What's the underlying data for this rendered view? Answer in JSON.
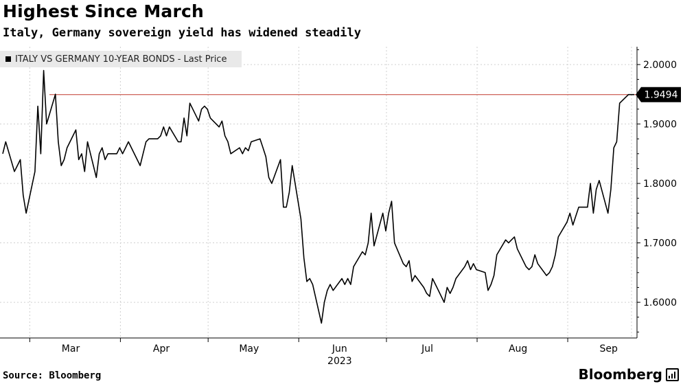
{
  "header": {
    "title": "Highest Since March",
    "subtitle": "Italy, Germany sovereign yield has widened steadily"
  },
  "legend": {
    "label": "ITALY VS GERMANY 10-YEAR BONDS - Last Price"
  },
  "footer": {
    "source": "Source: Bloomberg",
    "brand": "Bloomberg"
  },
  "chart_data": {
    "type": "line",
    "title": "Highest Since March",
    "subtitle": "Italy, Germany sovereign yield has widened steadily",
    "xlabel": "2023",
    "ylabel": "",
    "x_tick_labels": [
      "Mar",
      "Apr",
      "May",
      "Jun",
      "Jul",
      "Aug",
      "Sep"
    ],
    "year_label": "2023",
    "y_tick_labels": [
      "1.6000",
      "1.7000",
      "1.8000",
      "1.9000",
      "2.0000"
    ],
    "ylim": [
      1.54,
      2.03
    ],
    "y_axis_side": "right",
    "grid": true,
    "legend_position": "top-left",
    "last_value_label": "1.9494",
    "reference_line": {
      "value": 1.9494,
      "color": "#c0392b"
    },
    "series": [
      {
        "name": "ITALY VS GERMANY 10-YEAR BONDS - Last Price",
        "color": "#000000",
        "points": [
          [
            "2023-02-16",
            1.85
          ],
          [
            "2023-02-17",
            1.87
          ],
          [
            "2023-02-20",
            1.82
          ],
          [
            "2023-02-21",
            1.83
          ],
          [
            "2023-02-22",
            1.84
          ],
          [
            "2023-02-23",
            1.78
          ],
          [
            "2023-02-24",
            1.75
          ],
          [
            "2023-02-27",
            1.82
          ],
          [
            "2023-02-28",
            1.93
          ],
          [
            "2023-03-01",
            1.85
          ],
          [
            "2023-03-02",
            1.99
          ],
          [
            "2023-03-03",
            1.9
          ],
          [
            "2023-03-06",
            1.95
          ],
          [
            "2023-03-07",
            1.87
          ],
          [
            "2023-03-08",
            1.83
          ],
          [
            "2023-03-09",
            1.84
          ],
          [
            "2023-03-10",
            1.86
          ],
          [
            "2023-03-13",
            1.89
          ],
          [
            "2023-03-14",
            1.84
          ],
          [
            "2023-03-15",
            1.85
          ],
          [
            "2023-03-16",
            1.82
          ],
          [
            "2023-03-17",
            1.87
          ],
          [
            "2023-03-20",
            1.81
          ],
          [
            "2023-03-21",
            1.85
          ],
          [
            "2023-03-22",
            1.86
          ],
          [
            "2023-03-23",
            1.84
          ],
          [
            "2023-03-24",
            1.85
          ],
          [
            "2023-03-27",
            1.85
          ],
          [
            "2023-03-28",
            1.86
          ],
          [
            "2023-03-29",
            1.85
          ],
          [
            "2023-03-30",
            1.86
          ],
          [
            "2023-03-31",
            1.87
          ],
          [
            "2023-04-03",
            1.84
          ],
          [
            "2023-04-04",
            1.83
          ],
          [
            "2023-04-05",
            1.85
          ],
          [
            "2023-04-06",
            1.87
          ],
          [
            "2023-04-07",
            1.875
          ],
          [
            "2023-04-10",
            1.875
          ],
          [
            "2023-04-11",
            1.88
          ],
          [
            "2023-04-12",
            1.895
          ],
          [
            "2023-04-13",
            1.88
          ],
          [
            "2023-04-14",
            1.895
          ],
          [
            "2023-04-17",
            1.87
          ],
          [
            "2023-04-18",
            1.87
          ],
          [
            "2023-04-19",
            1.91
          ],
          [
            "2023-04-20",
            1.88
          ],
          [
            "2023-04-21",
            1.935
          ],
          [
            "2023-04-24",
            1.905
          ],
          [
            "2023-04-25",
            1.925
          ],
          [
            "2023-04-26",
            1.93
          ],
          [
            "2023-04-27",
            1.925
          ],
          [
            "2023-04-28",
            1.91
          ],
          [
            "2023-05-01",
            1.895
          ],
          [
            "2023-05-02",
            1.905
          ],
          [
            "2023-05-03",
            1.88
          ],
          [
            "2023-05-04",
            1.87
          ],
          [
            "2023-05-05",
            1.85
          ],
          [
            "2023-05-08",
            1.86
          ],
          [
            "2023-05-09",
            1.85
          ],
          [
            "2023-05-10",
            1.86
          ],
          [
            "2023-05-11",
            1.855
          ],
          [
            "2023-05-12",
            1.87
          ],
          [
            "2023-05-15",
            1.875
          ],
          [
            "2023-05-16",
            1.86
          ],
          [
            "2023-05-17",
            1.845
          ],
          [
            "2023-05-18",
            1.81
          ],
          [
            "2023-05-19",
            1.8
          ],
          [
            "2023-05-22",
            1.84
          ],
          [
            "2023-05-23",
            1.76
          ],
          [
            "2023-05-24",
            1.76
          ],
          [
            "2023-05-25",
            1.785
          ],
          [
            "2023-05-26",
            1.83
          ],
          [
            "2023-05-29",
            1.74
          ],
          [
            "2023-05-30",
            1.675
          ],
          [
            "2023-05-31",
            1.635
          ],
          [
            "2023-06-01",
            1.64
          ],
          [
            "2023-06-02",
            1.63
          ],
          [
            "2023-06-05",
            1.565
          ],
          [
            "2023-06-06",
            1.6
          ],
          [
            "2023-06-07",
            1.62
          ],
          [
            "2023-06-08",
            1.63
          ],
          [
            "2023-06-09",
            1.62
          ],
          [
            "2023-06-12",
            1.64
          ],
          [
            "2023-06-13",
            1.63
          ],
          [
            "2023-06-14",
            1.64
          ],
          [
            "2023-06-15",
            1.63
          ],
          [
            "2023-06-16",
            1.66
          ],
          [
            "2023-06-19",
            1.685
          ],
          [
            "2023-06-20",
            1.68
          ],
          [
            "2023-06-21",
            1.7
          ],
          [
            "2023-06-22",
            1.75
          ],
          [
            "2023-06-23",
            1.695
          ],
          [
            "2023-06-26",
            1.75
          ],
          [
            "2023-06-27",
            1.72
          ],
          [
            "2023-06-28",
            1.75
          ],
          [
            "2023-06-29",
            1.77
          ],
          [
            "2023-06-30",
            1.7
          ],
          [
            "2023-07-03",
            1.665
          ],
          [
            "2023-07-04",
            1.66
          ],
          [
            "2023-07-05",
            1.67
          ],
          [
            "2023-07-06",
            1.635
          ],
          [
            "2023-07-07",
            1.645
          ],
          [
            "2023-07-10",
            1.625
          ],
          [
            "2023-07-11",
            1.615
          ],
          [
            "2023-07-12",
            1.61
          ],
          [
            "2023-07-13",
            1.64
          ],
          [
            "2023-07-14",
            1.63
          ],
          [
            "2023-07-17",
            1.6
          ],
          [
            "2023-07-18",
            1.625
          ],
          [
            "2023-07-19",
            1.615
          ],
          [
            "2023-07-20",
            1.625
          ],
          [
            "2023-07-21",
            1.64
          ],
          [
            "2023-07-24",
            1.66
          ],
          [
            "2023-07-25",
            1.67
          ],
          [
            "2023-07-26",
            1.655
          ],
          [
            "2023-07-27",
            1.665
          ],
          [
            "2023-07-28",
            1.655
          ],
          [
            "2023-07-31",
            1.65
          ],
          [
            "2023-08-01",
            1.62
          ],
          [
            "2023-08-02",
            1.63
          ],
          [
            "2023-08-03",
            1.645
          ],
          [
            "2023-08-04",
            1.68
          ],
          [
            "2023-08-07",
            1.705
          ],
          [
            "2023-08-08",
            1.7
          ],
          [
            "2023-08-09",
            1.705
          ],
          [
            "2023-08-10",
            1.71
          ],
          [
            "2023-08-11",
            1.69
          ],
          [
            "2023-08-14",
            1.66
          ],
          [
            "2023-08-15",
            1.655
          ],
          [
            "2023-08-16",
            1.66
          ],
          [
            "2023-08-17",
            1.68
          ],
          [
            "2023-08-18",
            1.665
          ],
          [
            "2023-08-21",
            1.645
          ],
          [
            "2023-08-22",
            1.65
          ],
          [
            "2023-08-23",
            1.66
          ],
          [
            "2023-08-24",
            1.68
          ],
          [
            "2023-08-25",
            1.71
          ],
          [
            "2023-08-28",
            1.735
          ],
          [
            "2023-08-29",
            1.75
          ],
          [
            "2023-08-30",
            1.73
          ],
          [
            "2023-08-31",
            1.745
          ],
          [
            "2023-09-01",
            1.76
          ],
          [
            "2023-09-04",
            1.76
          ],
          [
            "2023-09-05",
            1.8
          ],
          [
            "2023-09-06",
            1.75
          ],
          [
            "2023-09-07",
            1.79
          ],
          [
            "2023-09-08",
            1.805
          ],
          [
            "2023-09-11",
            1.75
          ],
          [
            "2023-09-12",
            1.79
          ],
          [
            "2023-09-13",
            1.86
          ],
          [
            "2023-09-14",
            1.87
          ],
          [
            "2023-09-15",
            1.935
          ],
          [
            "2023-09-18",
            1.9494
          ],
          [
            "2023-09-19",
            1.9494
          ],
          [
            "2023-09-20",
            1.9494
          ]
        ]
      }
    ]
  }
}
